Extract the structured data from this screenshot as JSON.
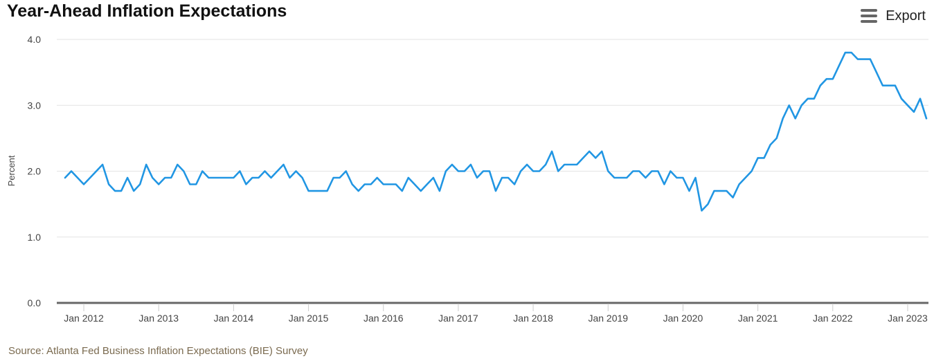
{
  "title": "Year-Ahead Inflation Expectations",
  "export_label": "Export",
  "export_icon": "hamburger-menu-icon",
  "source": "Source: Atlanta Fed Business Inflation Expectations (BIE) Survey",
  "colors": {
    "line": "#2196e3",
    "grid": "#e3e3e3",
    "axis": "#666666",
    "source_text": "#7a6a4f"
  },
  "chart_data": {
    "type": "line",
    "title": "Year-Ahead Inflation Expectations",
    "xlabel": "",
    "ylabel": "Percent",
    "ylim": [
      0,
      4
    ],
    "y_ticks": [
      "0.0",
      "1.0",
      "2.0",
      "3.0",
      "4.0"
    ],
    "x_ticks": [
      "Jan 2012",
      "Jan 2013",
      "Jan 2014",
      "Jan 2015",
      "Jan 2016",
      "Jan 2017",
      "Jan 2018",
      "Jan 2019",
      "Jan 2020",
      "Jan 2021",
      "Jan 2022",
      "Jan 2023"
    ],
    "x_start": "2011-10",
    "x_end": "2023-03",
    "grid": true,
    "legend": "none",
    "series": [
      {
        "values": [
          1.9,
          2.0,
          1.9,
          1.8,
          1.9,
          2.0,
          2.1,
          1.8,
          1.7,
          1.7,
          1.9,
          1.7,
          1.8,
          2.1,
          1.9,
          1.8,
          1.9,
          1.9,
          2.1,
          2.0,
          1.8,
          1.8,
          2.0,
          1.9,
          1.9,
          1.9,
          1.9,
          1.9,
          2.0,
          1.8,
          1.9,
          1.9,
          2.0,
          1.9,
          2.0,
          2.1,
          1.9,
          2.0,
          1.9,
          1.7,
          1.7,
          1.7,
          1.7,
          1.9,
          1.9,
          2.0,
          1.8,
          1.7,
          1.8,
          1.8,
          1.9,
          1.8,
          1.8,
          1.8,
          1.7,
          1.9,
          1.8,
          1.7,
          1.8,
          1.9,
          1.7,
          2.0,
          2.1,
          2.0,
          2.0,
          2.1,
          1.9,
          2.0,
          2.0,
          1.7,
          1.9,
          1.9,
          1.8,
          2.0,
          2.1,
          2.0,
          2.0,
          2.1,
          2.3,
          2.0,
          2.1,
          2.1,
          2.1,
          2.2,
          2.3,
          2.2,
          2.3,
          2.0,
          1.9,
          1.9,
          1.9,
          2.0,
          2.0,
          1.9,
          2.0,
          2.0,
          1.8,
          2.0,
          1.9,
          1.9,
          1.7,
          1.9,
          1.4,
          1.5,
          1.7,
          1.7,
          1.7,
          1.6,
          1.8,
          1.9,
          2.0,
          2.2,
          2.2,
          2.4,
          2.5,
          2.8,
          3.0,
          2.8,
          3.0,
          3.1,
          3.1,
          3.3,
          3.4,
          3.4,
          3.6,
          3.8,
          3.8,
          3.7,
          3.7,
          3.7,
          3.5,
          3.3,
          3.3,
          3.3,
          3.1,
          3.0,
          2.9,
          3.1,
          2.8
        ]
      }
    ]
  }
}
